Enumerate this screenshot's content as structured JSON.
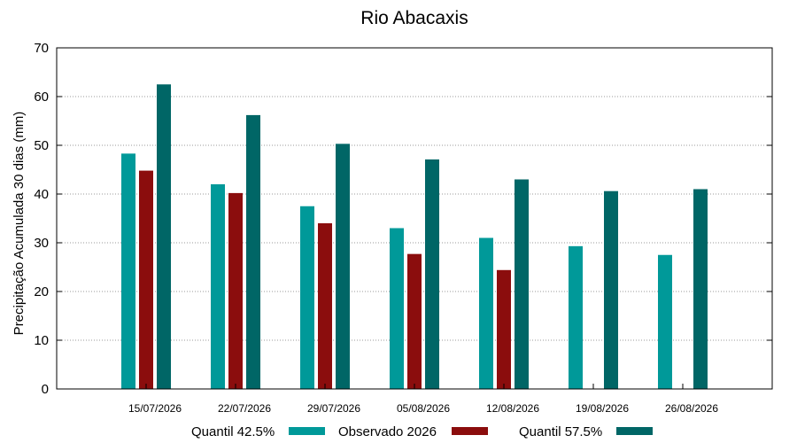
{
  "chart_data": {
    "type": "bar",
    "title": "Rio Abacaxis",
    "ylabel": "Precipitação Acumulada 30 dias (mm)",
    "xlabel": "",
    "ylim": [
      0,
      70
    ],
    "yticks": [
      0,
      10,
      20,
      30,
      40,
      50,
      60,
      70
    ],
    "grid": true,
    "legend_position": "bottom",
    "categories": [
      "15/07/2026",
      "22/07/2026",
      "29/07/2026",
      "05/08/2026",
      "12/08/2026",
      "19/08/2026",
      "26/08/2026"
    ],
    "series": [
      {
        "name": "Quantil 42.5%",
        "color": "#009999",
        "values": [
          48.3,
          42.0,
          37.5,
          33.0,
          31.0,
          29.3,
          27.5
        ]
      },
      {
        "name": "Observado 2026",
        "color": "#8b0d0d",
        "values": [
          44.8,
          40.2,
          34.0,
          27.7,
          24.4,
          null,
          null
        ]
      },
      {
        "name": "Quantil 57.5%",
        "color": "#006666",
        "values": [
          62.5,
          56.2,
          50.3,
          47.1,
          43.0,
          40.6,
          41.0
        ]
      }
    ]
  }
}
